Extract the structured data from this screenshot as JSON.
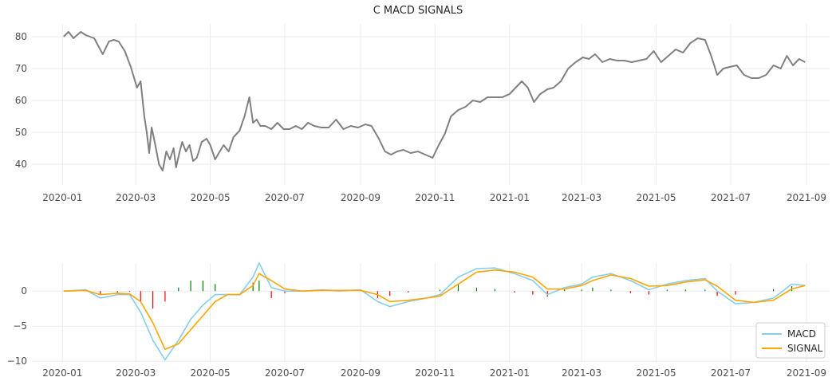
{
  "chart_data": [
    {
      "type": "line",
      "title": "C MACD SIGNALS",
      "xlabel": "",
      "ylabel": "",
      "xlim": [
        "2019-12-07",
        "2021-09-20"
      ],
      "ylim": [
        33.5,
        84
      ],
      "x_ticks": [
        "2020-01",
        "2020-03",
        "2020-05",
        "2020-07",
        "2020-09",
        "2020-11",
        "2021-01",
        "2021-03",
        "2021-05",
        "2021-07",
        "2021-09"
      ],
      "y_ticks": [
        40,
        50,
        60,
        70,
        80
      ],
      "grid": true,
      "colors": {
        "price": "#808080",
        "grid": "#ebebeb"
      },
      "series": [
        {
          "values_x": [
            "2020-01-02",
            "2020-01-06",
            "2020-01-10",
            "2020-01-16",
            "2020-01-20",
            "2020-01-27",
            "2020-02-03",
            "2020-02-08",
            "2020-02-12",
            "2020-02-16",
            "2020-02-21",
            "2020-02-26",
            "2020-03-02",
            "2020-03-05",
            "2020-03-08",
            "2020-03-10",
            "2020-03-12",
            "2020-03-14",
            "2020-03-17",
            "2020-03-20",
            "2020-03-23",
            "2020-03-26",
            "2020-03-29",
            "2020-04-01",
            "2020-04-03",
            "2020-04-06",
            "2020-04-08",
            "2020-04-11",
            "2020-04-14",
            "2020-04-17",
            "2020-04-20",
            "2020-04-24",
            "2020-04-28",
            "2020-05-01",
            "2020-05-05",
            "2020-05-08",
            "2020-05-12",
            "2020-05-16",
            "2020-05-20",
            "2020-05-25",
            "2020-05-29",
            "2020-06-02",
            "2020-06-05",
            "2020-06-08",
            "2020-06-11",
            "2020-06-15",
            "2020-06-20",
            "2020-06-25",
            "2020-06-30",
            "2020-07-05",
            "2020-07-10",
            "2020-07-15",
            "2020-07-20",
            "2020-07-25",
            "2020-07-31",
            "2020-08-06",
            "2020-08-12",
            "2020-08-18",
            "2020-08-24",
            "2020-08-30",
            "2020-09-05",
            "2020-09-10",
            "2020-09-16",
            "2020-09-21",
            "2020-09-26",
            "2020-10-01",
            "2020-10-06",
            "2020-10-12",
            "2020-10-18",
            "2020-10-24",
            "2020-10-30",
            "2020-11-04",
            "2020-11-09",
            "2020-11-14",
            "2020-11-20",
            "2020-11-26",
            "2020-12-02",
            "2020-12-08",
            "2020-12-14",
            "2020-12-20",
            "2020-12-26",
            "2021-01-01",
            "2021-01-06",
            "2021-01-11",
            "2021-01-16",
            "2021-01-21",
            "2021-01-26",
            "2021-02-01",
            "2021-02-06",
            "2021-02-12",
            "2021-02-18",
            "2021-02-24",
            "2021-03-02",
            "2021-03-07",
            "2021-03-12",
            "2021-03-18",
            "2021-03-24",
            "2021-03-30",
            "2021-04-05",
            "2021-04-11",
            "2021-04-17",
            "2021-04-23",
            "2021-04-29",
            "2021-05-05",
            "2021-05-11",
            "2021-05-17",
            "2021-05-23",
            "2021-05-29",
            "2021-06-04",
            "2021-06-10",
            "2021-06-15",
            "2021-06-20",
            "2021-06-25",
            "2021-06-30",
            "2021-07-06",
            "2021-07-12",
            "2021-07-18",
            "2021-07-24",
            "2021-07-30",
            "2021-08-05",
            "2021-08-11",
            "2021-08-16",
            "2021-08-21",
            "2021-08-26",
            "2021-08-31"
          ],
          "values": [
            80,
            81.5,
            79.5,
            81.5,
            80.5,
            79.5,
            74.5,
            78.5,
            79,
            78.5,
            75.5,
            70.5,
            64,
            66,
            55,
            50,
            43.5,
            51.5,
            46,
            40,
            38,
            44,
            41.5,
            45,
            39,
            44,
            47,
            44,
            46,
            41,
            42,
            47,
            48,
            46,
            41.5,
            43.5,
            46,
            44,
            48.5,
            50.5,
            55,
            61,
            53,
            54,
            52,
            52,
            51,
            53,
            51,
            51,
            52,
            51,
            53,
            52,
            51.5,
            51.5,
            54,
            51,
            52,
            51.5,
            52.5,
            52,
            48,
            44,
            43,
            44,
            44.5,
            43.5,
            44,
            43,
            42,
            46,
            49.5,
            55,
            57,
            58,
            60,
            59.5,
            61,
            61,
            61,
            62,
            64,
            66,
            64,
            59.5,
            62,
            63.5,
            64,
            66,
            70,
            72,
            73.5,
            73,
            74.5,
            72,
            73,
            72.5,
            72.5,
            72,
            72.5,
            73,
            75.5,
            72,
            74,
            76,
            75,
            78,
            79.5,
            79,
            74,
            68,
            70,
            70.5,
            71,
            68,
            67,
            67,
            68,
            71,
            70,
            74,
            71,
            73,
            72
          ]
        }
      ]
    },
    {
      "type": "line",
      "title": "",
      "xlabel": "",
      "ylabel": "",
      "xlim": [
        "2019-12-07",
        "2021-09-20"
      ],
      "ylim": [
        -10.2,
        4
      ],
      "x_ticks": [
        "2020-01",
        "2020-03",
        "2020-05",
        "2020-07",
        "2020-09",
        "2020-11",
        "2021-01",
        "2021-03",
        "2021-05",
        "2021-07",
        "2021-09"
      ],
      "y_ticks": [
        0,
        -5,
        -10
      ],
      "grid": true,
      "legend": {
        "placement": "bottom-right",
        "entries": [
          "MACD",
          "SIGNAL"
        ]
      },
      "colors": {
        "macd": "#87ceeb",
        "signal": "#ffa500",
        "hist_positive": "#008000",
        "hist_negative": "#ff0000"
      },
      "x": [
        "2020-01-02",
        "2020-01-20",
        "2020-02-01",
        "2020-02-15",
        "2020-02-25",
        "2020-03-05",
        "2020-03-15",
        "2020-03-25",
        "2020-04-05",
        "2020-04-15",
        "2020-04-25",
        "2020-05-05",
        "2020-05-15",
        "2020-05-25",
        "2020-06-05",
        "2020-06-10",
        "2020-06-20",
        "2020-07-01",
        "2020-07-15",
        "2020-08-01",
        "2020-08-15",
        "2020-09-01",
        "2020-09-15",
        "2020-09-25",
        "2020-10-10",
        "2020-10-25",
        "2020-11-05",
        "2020-11-20",
        "2020-12-05",
        "2020-12-20",
        "2021-01-05",
        "2021-01-20",
        "2021-02-01",
        "2021-02-15",
        "2021-03-01",
        "2021-03-10",
        "2021-03-25",
        "2021-04-10",
        "2021-04-25",
        "2021-05-10",
        "2021-05-25",
        "2021-06-10",
        "2021-06-20",
        "2021-07-05",
        "2021-07-20",
        "2021-08-05",
        "2021-08-20",
        "2021-08-31"
      ],
      "series": [
        {
          "name": "MACD",
          "values": [
            0,
            0.2,
            -1,
            -0.5,
            -0.5,
            -3,
            -7,
            -9.8,
            -7,
            -4,
            -2,
            -0.5,
            -0.5,
            -0.5,
            2,
            4,
            0.5,
            0,
            0,
            0.2,
            0,
            0.2,
            -1.5,
            -2.2,
            -1.5,
            -1,
            -0.5,
            2,
            3.2,
            3.3,
            2.5,
            1.5,
            -0.5,
            0.5,
            1,
            2,
            2.5,
            1.5,
            0.2,
            1,
            1.5,
            1.8,
            0,
            -1.8,
            -1.6,
            -1,
            1,
            0.8
          ]
        },
        {
          "name": "SIGNAL",
          "values": [
            0,
            0.1,
            -0.5,
            -0.3,
            -0.4,
            -1.5,
            -4.5,
            -8.3,
            -7.5,
            -5.5,
            -3.5,
            -1.5,
            -0.5,
            -0.5,
            0.8,
            2.5,
            1.5,
            0.3,
            0,
            0.1,
            0.1,
            0.1,
            -0.5,
            -1.5,
            -1.3,
            -1,
            -0.7,
            1,
            2.7,
            3,
            2.7,
            2,
            0.3,
            0.3,
            0.8,
            1.5,
            2.3,
            1.8,
            0.7,
            0.8,
            1.3,
            1.6,
            0.7,
            -1.3,
            -1.6,
            -1.3,
            0.3,
            0.8
          ]
        },
        {
          "name": "histogram",
          "values": [
            0,
            0.1,
            -0.5,
            -0.2,
            -0.1,
            -1.5,
            -2.5,
            -1.5,
            0.5,
            1.5,
            1.5,
            1,
            0,
            0,
            1.2,
            1.5,
            -1,
            -0.3,
            0,
            0.1,
            -0.1,
            0.1,
            -1,
            -0.7,
            -0.2,
            0,
            0.2,
            1,
            0.5,
            0.3,
            -0.2,
            -0.5,
            -0.8,
            0.2,
            0.2,
            0.5,
            0.2,
            -0.3,
            -0.5,
            0.2,
            0.2,
            0.2,
            -0.7,
            -0.5,
            0,
            0.3,
            0.7,
            0
          ]
        }
      ]
    }
  ]
}
